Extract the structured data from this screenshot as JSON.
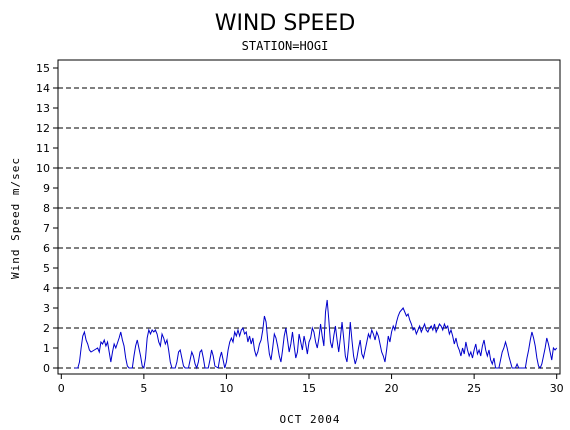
{
  "chart_data": {
    "type": "line",
    "title": "WIND SPEED",
    "subtitle": "STATION=HOGI",
    "xlabel": "OCT 2004",
    "ylabel": "Wind Speed m/sec",
    "xlim": [
      -0.2,
      30.2
    ],
    "ylim": [
      -0.3,
      15.4
    ],
    "x_ticks": [
      0,
      5,
      10,
      15,
      20,
      25,
      30
    ],
    "y_ticks": [
      0,
      1,
      2,
      3,
      4,
      5,
      6,
      7,
      8,
      9,
      10,
      11,
      12,
      13,
      14,
      15
    ],
    "gridlines_y": [
      2,
      4,
      6,
      8,
      10,
      12,
      14
    ],
    "grid": "dashed horizontal",
    "line_color": "#0000cc",
    "series": [
      {
        "values": [
          [
            0.8,
            0.0
          ],
          [
            1.0,
            0.0
          ],
          [
            1.1,
            0.3
          ],
          [
            1.2,
            1.0
          ],
          [
            1.3,
            1.6
          ],
          [
            1.4,
            1.8
          ],
          [
            1.5,
            1.4
          ],
          [
            1.6,
            1.2
          ],
          [
            1.7,
            0.9
          ],
          [
            1.8,
            0.8
          ],
          [
            2.0,
            0.9
          ],
          [
            2.2,
            1.0
          ],
          [
            2.3,
            0.8
          ],
          [
            2.4,
            1.3
          ],
          [
            2.5,
            1.2
          ],
          [
            2.6,
            1.4
          ],
          [
            2.7,
            1.1
          ],
          [
            2.8,
            1.3
          ],
          [
            2.9,
            0.8
          ],
          [
            3.0,
            0.3
          ],
          [
            3.1,
            0.8
          ],
          [
            3.2,
            1.2
          ],
          [
            3.3,
            1.0
          ],
          [
            3.5,
            1.5
          ],
          [
            3.6,
            1.8
          ],
          [
            3.7,
            1.4
          ],
          [
            3.8,
            1.1
          ],
          [
            3.9,
            0.5
          ],
          [
            4.0,
            0.1
          ],
          [
            4.1,
            0.0
          ],
          [
            4.3,
            0.0
          ],
          [
            4.4,
            0.6
          ],
          [
            4.5,
            1.1
          ],
          [
            4.6,
            1.4
          ],
          [
            4.7,
            1.0
          ],
          [
            4.8,
            0.6
          ],
          [
            4.9,
            0.1
          ],
          [
            5.0,
            0.0
          ],
          [
            5.1,
            0.5
          ],
          [
            5.2,
            1.5
          ],
          [
            5.3,
            1.9
          ],
          [
            5.4,
            1.7
          ],
          [
            5.5,
            1.9
          ],
          [
            5.6,
            1.8
          ],
          [
            5.7,
            1.9
          ],
          [
            5.8,
            1.7
          ],
          [
            5.9,
            1.3
          ],
          [
            6.0,
            1.1
          ],
          [
            6.1,
            1.7
          ],
          [
            6.2,
            1.5
          ],
          [
            6.3,
            1.2
          ],
          [
            6.4,
            1.4
          ],
          [
            6.5,
            0.9
          ],
          [
            6.6,
            0.3
          ],
          [
            6.7,
            0.0
          ],
          [
            6.9,
            0.0
          ],
          [
            7.0,
            0.3
          ],
          [
            7.1,
            0.8
          ],
          [
            7.2,
            0.9
          ],
          [
            7.3,
            0.5
          ],
          [
            7.4,
            0.1
          ],
          [
            7.5,
            0.0
          ],
          [
            7.7,
            0.0
          ],
          [
            7.8,
            0.4
          ],
          [
            7.9,
            0.8
          ],
          [
            8.0,
            0.6
          ],
          [
            8.1,
            0.2
          ],
          [
            8.2,
            0.0
          ],
          [
            8.3,
            0.3
          ],
          [
            8.4,
            0.8
          ],
          [
            8.5,
            0.9
          ],
          [
            8.6,
            0.5
          ],
          [
            8.7,
            0.0
          ],
          [
            8.9,
            0.0
          ],
          [
            9.0,
            0.4
          ],
          [
            9.1,
            0.9
          ],
          [
            9.2,
            0.6
          ],
          [
            9.3,
            0.1
          ],
          [
            9.5,
            0.0
          ],
          [
            9.6,
            0.5
          ],
          [
            9.7,
            0.8
          ],
          [
            9.8,
            0.4
          ],
          [
            9.9,
            0.0
          ],
          [
            10.0,
            0.3
          ],
          [
            10.1,
            0.9
          ],
          [
            10.2,
            1.3
          ],
          [
            10.3,
            1.5
          ],
          [
            10.4,
            1.3
          ],
          [
            10.5,
            1.8
          ],
          [
            10.6,
            1.6
          ],
          [
            10.7,
            1.9
          ],
          [
            10.8,
            1.6
          ],
          [
            10.9,
            1.9
          ],
          [
            11.0,
            2.0
          ],
          [
            11.1,
            1.7
          ],
          [
            11.2,
            1.8
          ],
          [
            11.3,
            1.3
          ],
          [
            11.4,
            1.6
          ],
          [
            11.5,
            1.2
          ],
          [
            11.6,
            1.5
          ],
          [
            11.7,
            0.9
          ],
          [
            11.8,
            0.6
          ],
          [
            11.9,
            0.8
          ],
          [
            12.0,
            1.2
          ],
          [
            12.1,
            1.4
          ],
          [
            12.2,
            1.9
          ],
          [
            12.3,
            2.6
          ],
          [
            12.4,
            2.3
          ],
          [
            12.5,
            1.4
          ],
          [
            12.6,
            0.7
          ],
          [
            12.7,
            0.4
          ],
          [
            12.8,
            1.0
          ],
          [
            12.9,
            1.7
          ],
          [
            13.0,
            1.5
          ],
          [
            13.1,
            1.1
          ],
          [
            13.2,
            0.6
          ],
          [
            13.3,
            0.3
          ],
          [
            13.4,
            0.9
          ],
          [
            13.5,
            1.6
          ],
          [
            13.6,
            2.0
          ],
          [
            13.7,
            1.4
          ],
          [
            13.8,
            0.8
          ],
          [
            13.9,
            1.2
          ],
          [
            14.0,
            1.8
          ],
          [
            14.1,
            1.1
          ],
          [
            14.2,
            0.5
          ],
          [
            14.3,
            0.8
          ],
          [
            14.4,
            1.7
          ],
          [
            14.5,
            1.3
          ],
          [
            14.6,
            0.9
          ],
          [
            14.7,
            1.6
          ],
          [
            14.8,
            1.2
          ],
          [
            14.9,
            0.7
          ],
          [
            15.0,
            1.3
          ],
          [
            15.1,
            1.5
          ],
          [
            15.2,
            2.0
          ],
          [
            15.3,
            1.8
          ],
          [
            15.4,
            1.3
          ],
          [
            15.5,
            1.0
          ],
          [
            15.6,
            1.5
          ],
          [
            15.7,
            2.2
          ],
          [
            15.8,
            1.6
          ],
          [
            15.9,
            1.1
          ],
          [
            16.0,
            2.8
          ],
          [
            16.1,
            3.4
          ],
          [
            16.2,
            2.4
          ],
          [
            16.3,
            1.3
          ],
          [
            16.4,
            1.0
          ],
          [
            16.5,
            1.6
          ],
          [
            16.6,
            2.1
          ],
          [
            16.7,
            1.4
          ],
          [
            16.8,
            0.8
          ],
          [
            16.9,
            1.5
          ],
          [
            17.0,
            2.3
          ],
          [
            17.1,
            1.5
          ],
          [
            17.2,
            0.6
          ],
          [
            17.3,
            0.3
          ],
          [
            17.4,
            1.1
          ],
          [
            17.5,
            2.3
          ],
          [
            17.6,
            1.4
          ],
          [
            17.7,
            0.6
          ],
          [
            17.8,
            0.2
          ],
          [
            17.9,
            0.5
          ],
          [
            18.0,
            1.0
          ],
          [
            18.1,
            1.4
          ],
          [
            18.2,
            0.7
          ],
          [
            18.3,
            0.5
          ],
          [
            18.4,
            0.9
          ],
          [
            18.5,
            1.3
          ],
          [
            18.6,
            1.7
          ],
          [
            18.7,
            1.5
          ],
          [
            18.8,
            1.9
          ],
          [
            18.9,
            1.7
          ],
          [
            19.0,
            1.4
          ],
          [
            19.1,
            1.8
          ],
          [
            19.2,
            1.6
          ],
          [
            19.3,
            1.2
          ],
          [
            19.4,
            0.8
          ],
          [
            19.5,
            0.6
          ],
          [
            19.6,
            0.3
          ],
          [
            19.7,
            0.9
          ],
          [
            19.8,
            1.6
          ],
          [
            19.9,
            1.3
          ],
          [
            20.0,
            1.8
          ],
          [
            20.1,
            2.1
          ],
          [
            20.2,
            1.9
          ],
          [
            20.3,
            2.3
          ],
          [
            20.4,
            2.6
          ],
          [
            20.5,
            2.8
          ],
          [
            20.6,
            2.9
          ],
          [
            20.7,
            3.0
          ],
          [
            20.8,
            2.8
          ],
          [
            20.9,
            2.6
          ],
          [
            21.0,
            2.7
          ],
          [
            21.1,
            2.4
          ],
          [
            21.2,
            2.2
          ],
          [
            21.3,
            1.9
          ],
          [
            21.4,
            2.0
          ],
          [
            21.5,
            1.7
          ],
          [
            21.6,
            1.9
          ],
          [
            21.7,
            2.1
          ],
          [
            21.8,
            1.8
          ],
          [
            21.9,
            2.0
          ],
          [
            22.0,
            2.2
          ],
          [
            22.1,
            1.9
          ],
          [
            22.2,
            1.8
          ],
          [
            22.3,
            2.0
          ],
          [
            22.4,
            2.1
          ],
          [
            22.5,
            1.9
          ],
          [
            22.6,
            2.2
          ],
          [
            22.7,
            1.8
          ],
          [
            22.8,
            2.0
          ],
          [
            22.9,
            2.2
          ],
          [
            23.0,
            2.1
          ],
          [
            23.1,
            1.9
          ],
          [
            23.2,
            2.2
          ],
          [
            23.3,
            2.0
          ],
          [
            23.4,
            2.1
          ],
          [
            23.5,
            1.7
          ],
          [
            23.6,
            1.9
          ],
          [
            23.7,
            1.6
          ],
          [
            23.8,
            1.2
          ],
          [
            23.9,
            1.5
          ],
          [
            24.0,
            1.1
          ],
          [
            24.1,
            0.9
          ],
          [
            24.2,
            0.6
          ],
          [
            24.3,
            1.0
          ],
          [
            24.4,
            0.7
          ],
          [
            24.5,
            1.3
          ],
          [
            24.6,
            0.9
          ],
          [
            24.7,
            0.6
          ],
          [
            24.8,
            0.8
          ],
          [
            24.9,
            0.5
          ],
          [
            25.0,
            0.9
          ],
          [
            25.1,
            1.2
          ],
          [
            25.2,
            0.7
          ],
          [
            25.3,
            0.9
          ],
          [
            25.4,
            0.6
          ],
          [
            25.5,
            1.1
          ],
          [
            25.6,
            1.4
          ],
          [
            25.7,
            0.9
          ],
          [
            25.8,
            0.6
          ],
          [
            25.9,
            0.9
          ],
          [
            26.0,
            0.4
          ],
          [
            26.1,
            0.2
          ],
          [
            26.2,
            0.5
          ],
          [
            26.3,
            0.0
          ],
          [
            26.5,
            0.0
          ],
          [
            26.6,
            0.4
          ],
          [
            26.7,
            0.8
          ],
          [
            26.8,
            1.0
          ],
          [
            26.9,
            1.3
          ],
          [
            27.0,
            1.0
          ],
          [
            27.1,
            0.6
          ],
          [
            27.2,
            0.3
          ],
          [
            27.3,
            0.0
          ],
          [
            27.5,
            0.0
          ],
          [
            27.6,
            0.2
          ],
          [
            27.7,
            0.0
          ],
          [
            28.1,
            0.0
          ],
          [
            28.2,
            0.5
          ],
          [
            28.3,
            0.9
          ],
          [
            28.4,
            1.4
          ],
          [
            28.5,
            1.8
          ],
          [
            28.6,
            1.5
          ],
          [
            28.7,
            1.1
          ],
          [
            28.8,
            0.5
          ],
          [
            28.9,
            0.1
          ],
          [
            29.0,
            0.0
          ],
          [
            29.1,
            0.2
          ],
          [
            29.2,
            0.6
          ],
          [
            29.3,
            1.0
          ],
          [
            29.4,
            1.5
          ],
          [
            29.5,
            1.2
          ],
          [
            29.6,
            0.8
          ],
          [
            29.7,
            0.4
          ],
          [
            29.8,
            1.0
          ],
          [
            29.9,
            0.9
          ],
          [
            30.0,
            1.0
          ]
        ]
      }
    ]
  }
}
